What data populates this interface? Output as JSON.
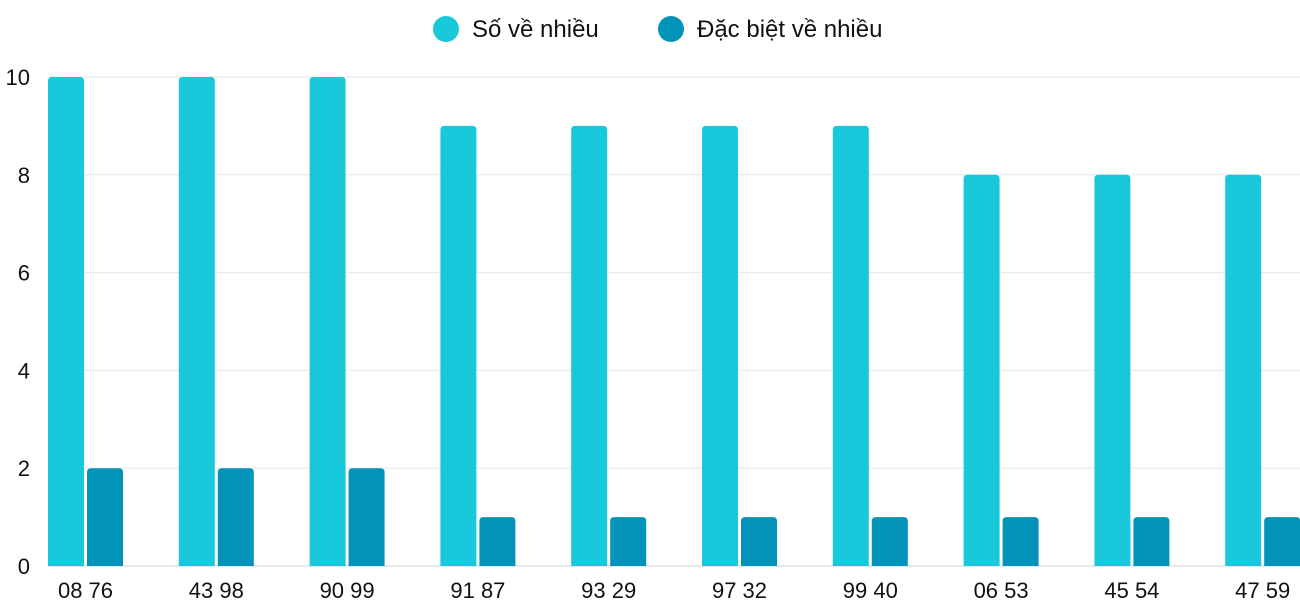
{
  "chart_data": {
    "type": "bar",
    "title": "",
    "xlabel": "",
    "ylabel": "",
    "ylim": [
      0,
      10
    ],
    "yticks": [
      0,
      2,
      4,
      6,
      8,
      10
    ],
    "grid": true,
    "legend_placement": "top-center",
    "categories": [
      "08 76",
      "43 98",
      "90 99",
      "91 87",
      "93 29",
      "97 32",
      "99 40",
      "06 53",
      "45 54",
      "47 59"
    ],
    "series": [
      {
        "name": "Số về nhiều",
        "color": "#1ac8db",
        "values": [
          10,
          10,
          10,
          9,
          9,
          9,
          9,
          8,
          8,
          8
        ]
      },
      {
        "name": "Đặc biệt về nhiều",
        "color": "#0392b8",
        "values": [
          2,
          2,
          2,
          1,
          1,
          1,
          1,
          1,
          1,
          1
        ]
      }
    ]
  }
}
